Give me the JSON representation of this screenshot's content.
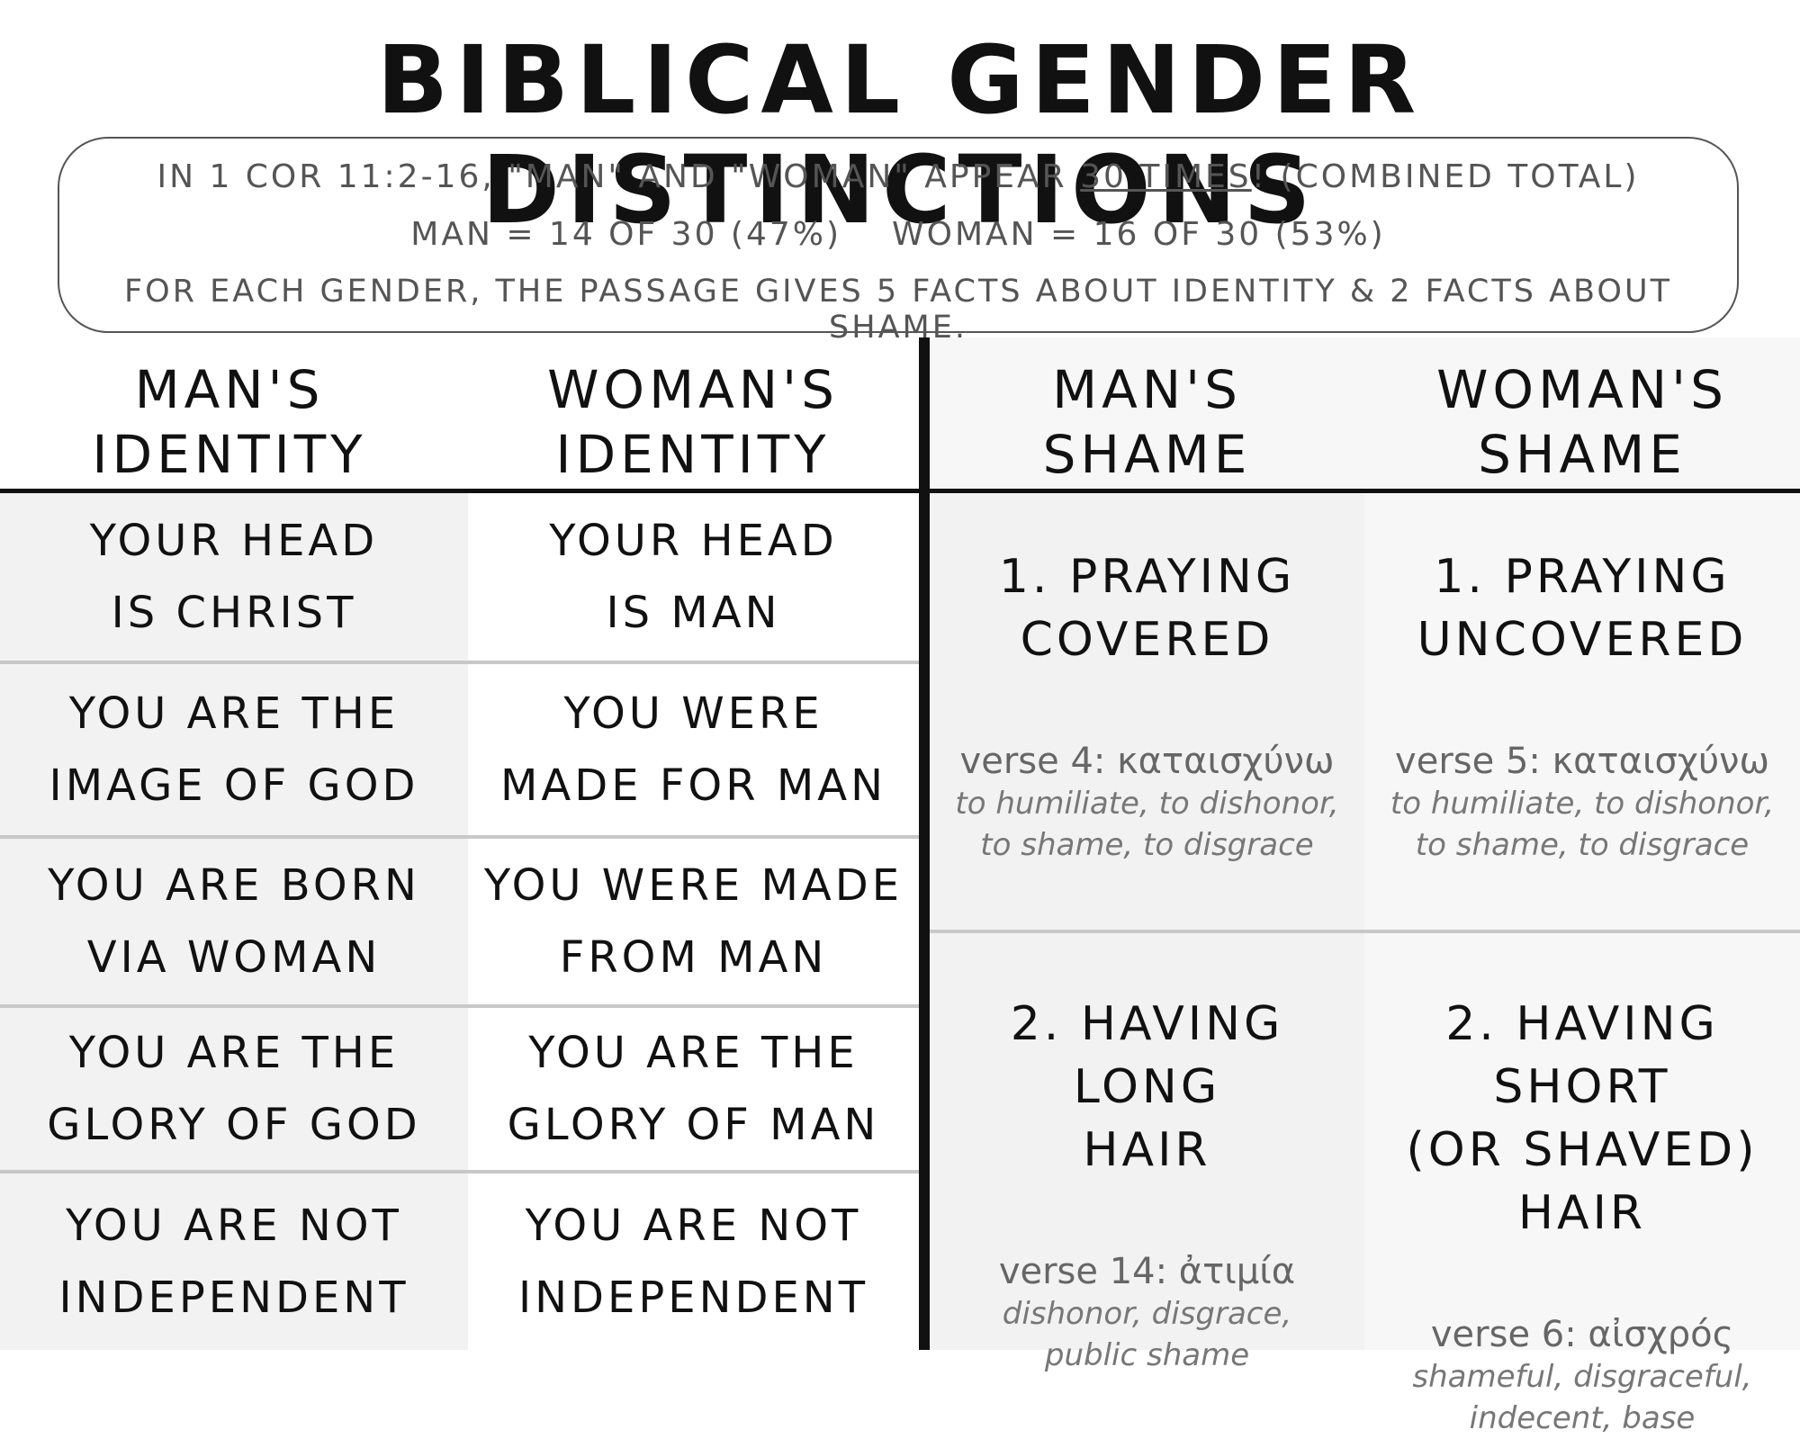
{
  "title": "BIBLICAL GENDER DISTINCTIONS",
  "summary": {
    "line1_prefix": "IN 1 COR 11:2-16, \"MAN\" AND \"WOMAN\" APPEAR ",
    "line1_underlined": "30 TIMES",
    "line1_suffix": "!  (COMBINED TOTAL)",
    "man_count": "MAN = 14 OF 30 (47%)",
    "woman_count": "WOMAN = 16 OF 30 (53%)",
    "line3": "FOR EACH GENDER, THE PASSAGE GIVES 5 FACTS ABOUT IDENTITY & 2 FACTS ABOUT SHAME."
  },
  "headers": [
    {
      "line1": "MAN'S",
      "line2": "IDENTITY"
    },
    {
      "line1": "WOMAN'S",
      "line2": "IDENTITY"
    },
    {
      "line1": "MAN'S",
      "line2": "SHAME"
    },
    {
      "line1": "WOMAN'S",
      "line2": "SHAME"
    }
  ],
  "identity_rows": [
    {
      "man": [
        "YOUR HEAD",
        "IS CHRIST"
      ],
      "woman": [
        "YOUR HEAD",
        "IS MAN"
      ]
    },
    {
      "man": [
        "YOU ARE THE",
        "IMAGE OF GOD"
      ],
      "woman": [
        "YOU WERE",
        "MADE FOR MAN"
      ]
    },
    {
      "man": [
        "YOU ARE BORN",
        "VIA WOMAN"
      ],
      "woman": [
        "YOU WERE MADE",
        "FROM MAN"
      ]
    },
    {
      "man": [
        "YOU ARE THE",
        "GLORY OF GOD"
      ],
      "woman": [
        "YOU ARE THE",
        "GLORY OF MAN"
      ]
    },
    {
      "man": [
        "YOU ARE NOT",
        "INDEPENDENT"
      ],
      "woman": [
        "YOU ARE NOT",
        "INDEPENDENT"
      ]
    }
  ],
  "shame_rows": [
    {
      "man": {
        "title": [
          "1. PRAYING",
          "COVERED"
        ],
        "verse": "verse 4: καταισχύνω",
        "gloss": [
          "to humiliate, to dishonor,",
          "to shame, to disgrace"
        ]
      },
      "woman": {
        "title": [
          "1. PRAYING",
          "UNCOVERED"
        ],
        "verse": "verse 5: καταισχύνω",
        "gloss": [
          "to humiliate, to dishonor,",
          "to shame, to disgrace"
        ]
      }
    },
    {
      "man": {
        "title": [
          "2. HAVING LONG",
          "HAIR"
        ],
        "verse": "verse 14: ἀτιμία",
        "gloss": [
          "dishonor, disgrace,",
          "public shame"
        ]
      },
      "woman": {
        "title": [
          "2. HAVING SHORT",
          "(OR SHAVED) HAIR"
        ],
        "verse": "verse 6: αἰσχρός",
        "gloss": [
          "shameful, disgraceful,",
          "indecent, base"
        ]
      }
    }
  ]
}
